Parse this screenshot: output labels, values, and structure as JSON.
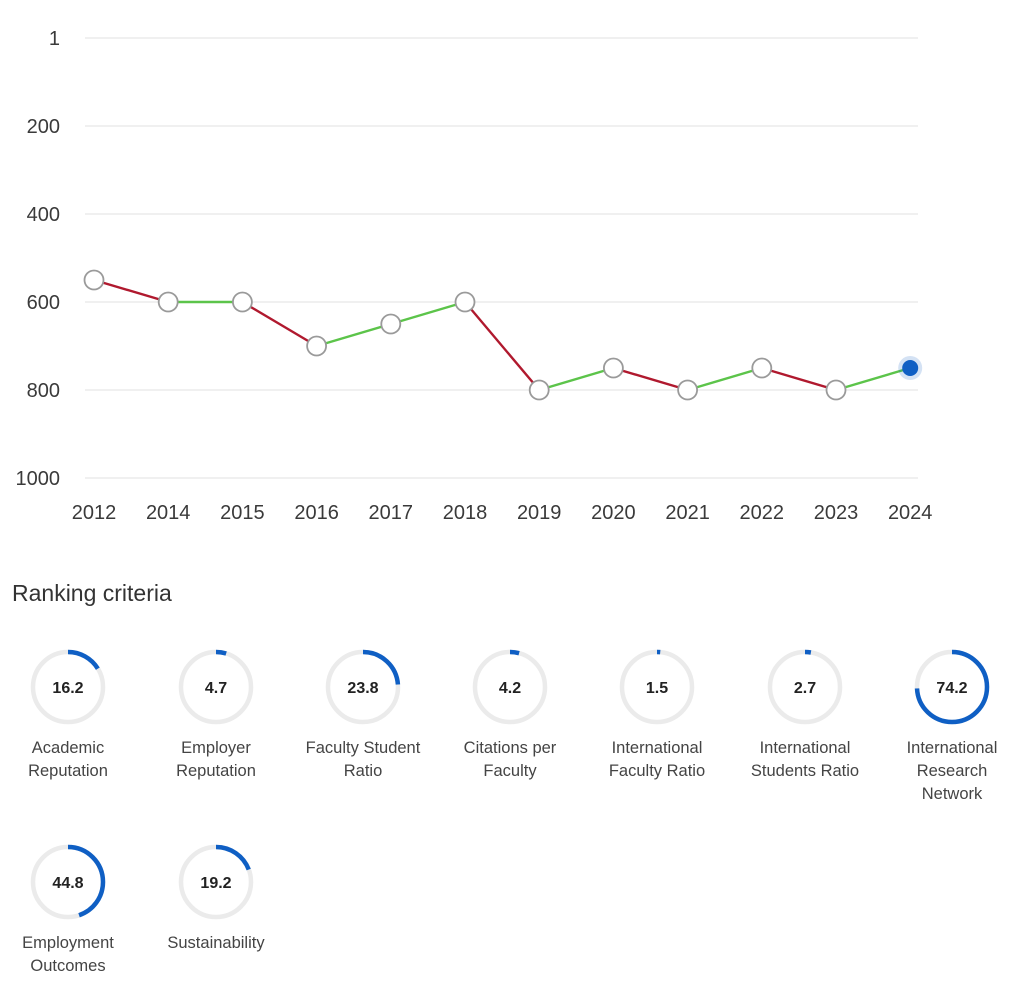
{
  "chart_data": {
    "type": "line",
    "title": "",
    "xlabel": "",
    "ylabel": "",
    "y_inverted": true,
    "ylim": [
      1,
      1000
    ],
    "y_ticks": [
      "1",
      "200",
      "400",
      "600",
      "800",
      "1000"
    ],
    "categories": [
      "2012",
      "2014",
      "2015",
      "2016",
      "2017",
      "2018",
      "2019",
      "2020",
      "2021",
      "2022",
      "2023",
      "2024"
    ],
    "series": [
      {
        "values": [
          550,
          600,
          600,
          700,
          650,
          600,
          800,
          750,
          800,
          750,
          800,
          750
        ]
      }
    ],
    "grid": true,
    "colors": {
      "worsened": "#b0192e",
      "improved": "#5cc44a",
      "current_point": "#0f5fc4",
      "marker_fill": "#ffffff",
      "marker_stroke": "#9a9a9a",
      "grid": "#e6e6e6"
    }
  },
  "ranking": {
    "title": "Ranking criteria",
    "ring_color": "#0f5fc4",
    "ring_track_color": "#ebebeb",
    "max": 100,
    "criteria": [
      {
        "value": "16.2",
        "score": 16.2,
        "label": "Academic Reputation"
      },
      {
        "value": "4.7",
        "score": 4.7,
        "label": "Employer Reputation"
      },
      {
        "value": "23.8",
        "score": 23.8,
        "label": "Faculty Student Ratio"
      },
      {
        "value": "4.2",
        "score": 4.2,
        "label": "Citations per Faculty"
      },
      {
        "value": "1.5",
        "score": 1.5,
        "label": "International Faculty Ratio"
      },
      {
        "value": "2.7",
        "score": 2.7,
        "label": "International Students Ratio"
      },
      {
        "value": "74.2",
        "score": 74.2,
        "label": "International Research Network"
      },
      {
        "value": "44.8",
        "score": 44.8,
        "label": "Employment Outcomes"
      },
      {
        "value": "19.2",
        "score": 19.2,
        "label": "Sustainability"
      }
    ]
  }
}
